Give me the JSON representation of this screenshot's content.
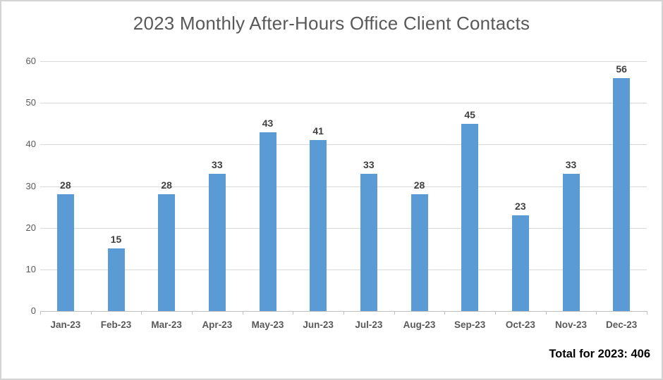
{
  "chart_data": {
    "type": "bar",
    "title": "2023 Monthly After-Hours Office Client Contacts",
    "categories": [
      "Jan-23",
      "Feb-23",
      "Mar-23",
      "Apr-23",
      "May-23",
      "Jun-23",
      "Jul-23",
      "Aug-23",
      "Sep-23",
      "Oct-23",
      "Nov-23",
      "Dec-23"
    ],
    "values": [
      28,
      15,
      28,
      33,
      43,
      41,
      33,
      28,
      45,
      23,
      33,
      56
    ],
    "data_labels_shown": true,
    "xlabel": "",
    "ylabel": "",
    "ylim": [
      0,
      60
    ],
    "yticks": [
      0,
      10,
      20,
      30,
      40,
      50,
      60
    ],
    "grid": "horizontal",
    "legend": "none",
    "total": 406,
    "total_label": "Total for 2023: 406",
    "colors": {
      "bar": "#5b9bd5",
      "title_text": "#595959",
      "axis_text": "#595959",
      "data_label_text": "#404040",
      "gridline": "#d9d9d9",
      "axis_line": "#bfbfbf",
      "total_text": "#000000",
      "frame_border": "#d3d3d3",
      "background": "#ffffff"
    }
  }
}
